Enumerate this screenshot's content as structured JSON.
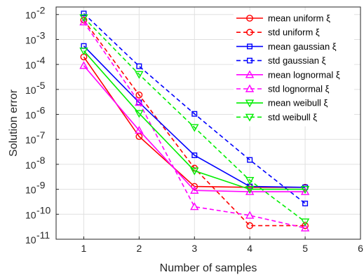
{
  "chart_data": {
    "type": "line",
    "title": "",
    "xlabel": "Number of samples",
    "ylabel": "Solution error",
    "yscale": "log",
    "xlim": [
      0.5,
      6
    ],
    "ylim": [
      1e-11,
      0.02
    ],
    "grid": true,
    "legend_position": "top-right",
    "x_ticks": [
      1,
      2,
      3,
      4,
      5,
      6
    ],
    "x_tick_labels": [
      "1",
      "2",
      "3",
      "4",
      "5",
      "6"
    ],
    "y_ticks": [
      1e-11,
      1e-10,
      1e-09,
      1e-08,
      1e-07,
      1e-06,
      1e-05,
      0.0001,
      0.001,
      0.01
    ],
    "y_tick_labels": [
      {
        "base": "10",
        "exp": "-11"
      },
      {
        "base": "10",
        "exp": "-10"
      },
      {
        "base": "10",
        "exp": "-9"
      },
      {
        "base": "10",
        "exp": "-8"
      },
      {
        "base": "10",
        "exp": "-7"
      },
      {
        "base": "10",
        "exp": "-6"
      },
      {
        "base": "10",
        "exp": "-5"
      },
      {
        "base": "10",
        "exp": "-4"
      },
      {
        "base": "10",
        "exp": "-3"
      },
      {
        "base": "10",
        "exp": "-2"
      }
    ],
    "x": [
      1,
      2,
      3,
      4,
      5
    ],
    "series": [
      {
        "name": "mean uniform ξ",
        "color": "#ff0000",
        "dash": "solid",
        "marker": "circle",
        "values": [
          0.0002,
          1.3e-07,
          1.3e-09,
          1.2e-09,
          1.2e-09
        ]
      },
      {
        "name": "std uniform ξ",
        "color": "#ff0000",
        "dash": "dashed",
        "marker": "circle",
        "values": [
          0.006,
          6e-06,
          7e-09,
          3.5e-11,
          3.5e-11
        ]
      },
      {
        "name": "mean gaussian ξ",
        "color": "#0000ff",
        "dash": "solid",
        "marker": "square",
        "values": [
          0.00055,
          3e-06,
          2.3e-08,
          1.3e-09,
          1.2e-09
        ]
      },
      {
        "name": "std gaussian ξ",
        "color": "#0000ff",
        "dash": "dashed",
        "marker": "square",
        "values": [
          0.011,
          8.5e-05,
          1.05e-06,
          1.5e-08,
          2.7e-10
        ]
      },
      {
        "name": "mean lognormal ξ",
        "color": "#ff00ff",
        "dash": "solid",
        "marker": "triangle-up",
        "values": [
          9e-05,
          2.3e-07,
          9e-10,
          8e-10,
          8e-10
        ]
      },
      {
        "name": "std lognormal ξ",
        "color": "#ff00ff",
        "dash": "dashed",
        "marker": "triangle-up",
        "values": [
          0.005,
          3e-06,
          2e-10,
          9e-11,
          2.8e-11
        ]
      },
      {
        "name": "mean weibull ξ",
        "color": "#00ee00",
        "dash": "solid",
        "marker": "triangle-down",
        "values": [
          0.00035,
          1.1e-06,
          5.5e-09,
          1e-09,
          1e-09
        ]
      },
      {
        "name": "std weibull ξ",
        "color": "#00ee00",
        "dash": "dashed",
        "marker": "triangle-down",
        "values": [
          0.0075,
          4e-05,
          3e-07,
          2.3e-09,
          5e-11
        ]
      }
    ]
  }
}
